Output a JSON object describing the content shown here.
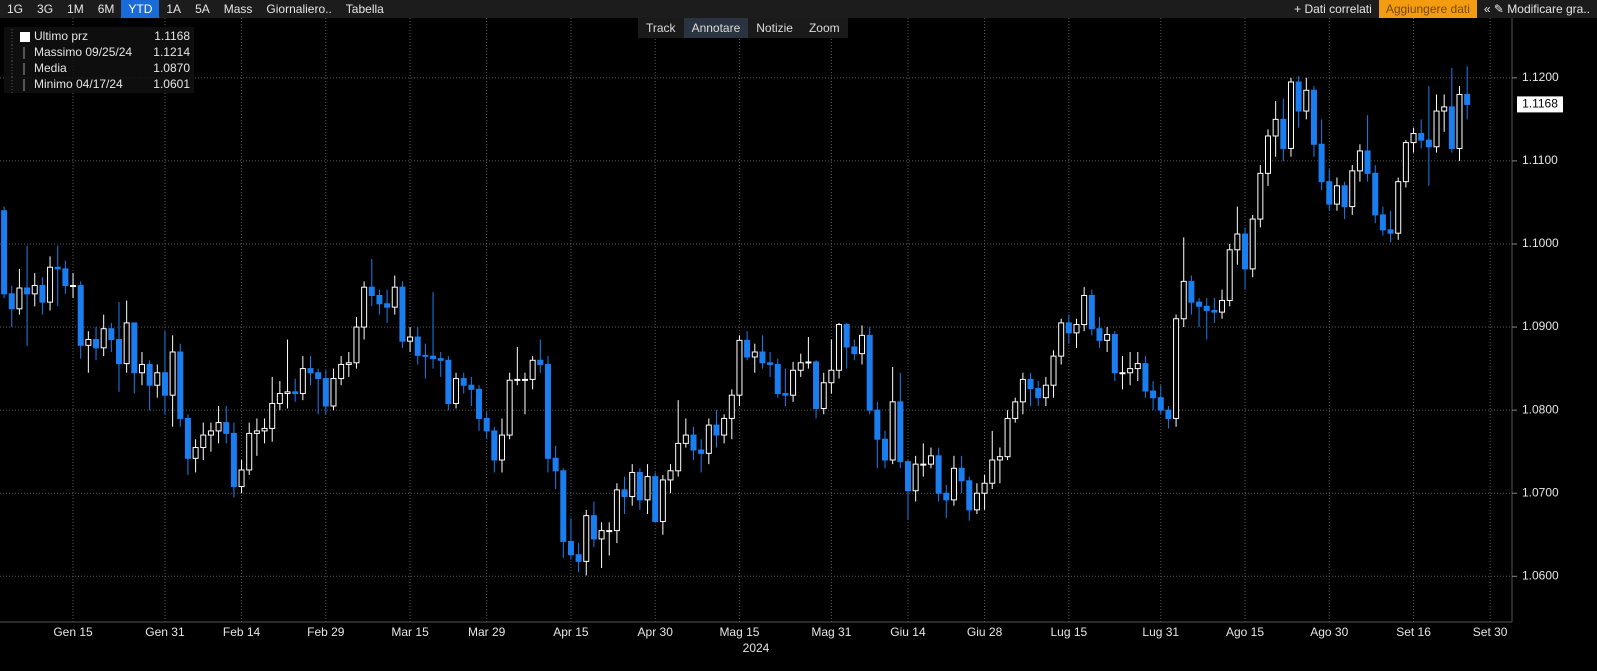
{
  "toolbar": {
    "left": [
      "1G",
      "3G",
      "1M",
      "6M",
      "YTD",
      "1A",
      "5A",
      "Mass",
      "Giornaliero..",
      "Tabella"
    ],
    "active": "YTD",
    "right": [
      "+ Dati correlati",
      "Aggiungere dati",
      "« ✎ Modificare gra.."
    ],
    "highlight": "Aggiungere dati",
    "tools": [
      "Track",
      "Annotare",
      "Notizie",
      "Zoom"
    ]
  },
  "legend": [
    {
      "label": "Ultimo prz",
      "value": "1.1168"
    },
    {
      "label": "Massimo 09/25/24",
      "value": "1.1214"
    },
    {
      "label": "Media",
      "value": "1.0870"
    },
    {
      "label": "Minimo 04/17/24",
      "value": "1.0601"
    }
  ],
  "chart_data": {
    "type": "candlestick",
    "x_title": "2024",
    "up_color": "#ffffff",
    "down_color": "#1a7ef0",
    "grid": true,
    "last_price": 1.1168,
    "ylim": [
      1.0545,
      1.1272
    ],
    "yticks": [
      {
        "value": 1.06,
        "label": "1.0600"
      },
      {
        "value": 1.07,
        "label": "1.0700"
      },
      {
        "value": 1.08,
        "label": "1.0800"
      },
      {
        "value": 1.09,
        "label": "1.0900"
      },
      {
        "value": 1.1,
        "label": "1.1000"
      },
      {
        "value": 1.11,
        "label": "1.1100"
      },
      {
        "value": 1.12,
        "label": "1.1200"
      }
    ],
    "categories": [
      null,
      null,
      null,
      null,
      null,
      null,
      null,
      null,
      null,
      "Gen 15",
      null,
      null,
      null,
      null,
      null,
      null,
      null,
      null,
      null,
      null,
      null,
      "Gen 31",
      null,
      null,
      null,
      null,
      null,
      null,
      null,
      null,
      null,
      "Feb 14",
      null,
      null,
      null,
      null,
      null,
      null,
      null,
      null,
      null,
      null,
      "Feb 29",
      null,
      null,
      null,
      null,
      null,
      null,
      null,
      null,
      null,
      null,
      "Mar 15",
      null,
      null,
      null,
      null,
      null,
      null,
      null,
      null,
      null,
      "Mar 29",
      null,
      null,
      null,
      null,
      null,
      null,
      null,
      null,
      null,
      null,
      "Apr 15",
      null,
      null,
      null,
      null,
      null,
      null,
      null,
      null,
      null,
      null,
      "Apr 30",
      null,
      null,
      null,
      null,
      null,
      null,
      null,
      null,
      null,
      null,
      "Mag 15",
      null,
      null,
      null,
      null,
      null,
      null,
      null,
      null,
      null,
      null,
      null,
      "Mag 31",
      null,
      null,
      null,
      null,
      null,
      null,
      null,
      null,
      null,
      "Giu 14",
      null,
      null,
      null,
      null,
      null,
      null,
      null,
      null,
      null,
      "Giu 28",
      null,
      null,
      null,
      null,
      null,
      null,
      null,
      null,
      null,
      null,
      "Lug 15",
      null,
      null,
      null,
      null,
      null,
      null,
      null,
      null,
      null,
      null,
      null,
      "Lug 31",
      null,
      null,
      null,
      null,
      null,
      null,
      null,
      null,
      null,
      null,
      "Ago 15",
      null,
      null,
      null,
      null,
      null,
      null,
      null,
      null,
      null,
      null,
      "Ago 30",
      null,
      null,
      null,
      null,
      null,
      null,
      null,
      null,
      null,
      null,
      "Set 16",
      null,
      null,
      null,
      null,
      null,
      null,
      null,
      null,
      null,
      "Set 30"
    ],
    "ohlc": [
      [
        1.104,
        1.1045,
        1.0935,
        1.094
      ],
      [
        1.094,
        1.095,
        1.09,
        1.0922
      ],
      [
        1.0922,
        1.097,
        1.0915,
        1.0947
      ],
      [
        1.0947,
        1.0998,
        1.0877,
        1.094
      ],
      [
        1.094,
        1.0965,
        1.0925,
        1.095
      ],
      [
        1.095,
        1.096,
        1.0915,
        1.093
      ],
      [
        1.093,
        1.0985,
        1.092,
        1.0972
      ],
      [
        1.0972,
        1.0998,
        1.0925,
        1.097
      ],
      [
        1.097,
        1.098,
        1.094,
        1.095
      ],
      [
        1.095,
        1.0965,
        1.0935,
        1.095
      ],
      [
        1.095,
        1.0955,
        1.0862,
        1.0878
      ],
      [
        1.0878,
        1.0895,
        1.0845,
        1.0885
      ],
      [
        1.0885,
        1.09,
        1.086,
        1.0875
      ],
      [
        1.0875,
        1.0915,
        1.0865,
        1.0898
      ],
      [
        1.0898,
        1.0905,
        1.087,
        1.0885
      ],
      [
        1.0885,
        1.093,
        1.0822,
        1.0856
      ],
      [
        1.0856,
        1.0932,
        1.0845,
        1.0905
      ],
      [
        1.0905,
        1.0905,
        1.082,
        1.0845
      ],
      [
        1.0845,
        1.087,
        1.083,
        1.0855
      ],
      [
        1.0855,
        1.086,
        1.08,
        1.083
      ],
      [
        1.083,
        1.0855,
        1.0815,
        1.0845
      ],
      [
        1.0845,
        1.0895,
        1.0795,
        1.0818
      ],
      [
        1.0818,
        1.089,
        1.078,
        1.087
      ],
      [
        1.087,
        1.088,
        1.078,
        1.079
      ],
      [
        1.079,
        1.0795,
        1.0722,
        1.0742
      ],
      [
        1.0742,
        1.0765,
        1.0725,
        1.0755
      ],
      [
        1.0755,
        1.0785,
        1.074,
        1.077
      ],
      [
        1.077,
        1.0785,
        1.075,
        1.0775
      ],
      [
        1.0775,
        1.0805,
        1.076,
        1.0785
      ],
      [
        1.0785,
        1.0805,
        1.076,
        1.0772
      ],
      [
        1.0772,
        1.0785,
        1.0695,
        1.0708
      ],
      [
        1.0708,
        1.074,
        1.07,
        1.0728
      ],
      [
        1.0728,
        1.0785,
        1.0722,
        1.0772
      ],
      [
        1.0772,
        1.079,
        1.0745,
        1.0775
      ],
      [
        1.0775,
        1.079,
        1.076,
        1.0778
      ],
      [
        1.0778,
        1.084,
        1.0762,
        1.0808
      ],
      [
        1.0808,
        1.0835,
        1.08,
        1.082
      ],
      [
        1.082,
        1.0885,
        1.0802,
        1.0822
      ],
      [
        1.0822,
        1.0838,
        1.081,
        1.082
      ],
      [
        1.082,
        1.0865,
        1.0812,
        1.085
      ],
      [
        1.085,
        1.0865,
        1.083,
        1.0845
      ],
      [
        1.0845,
        1.085,
        1.0795,
        1.0838
      ],
      [
        1.0838,
        1.0848,
        1.0795,
        1.0805
      ],
      [
        1.0805,
        1.085,
        1.08,
        1.0838
      ],
      [
        1.0838,
        1.0865,
        1.083,
        1.0855
      ],
      [
        1.0855,
        1.087,
        1.084,
        1.0857
      ],
      [
        1.0857,
        1.0912,
        1.085,
        1.09
      ],
      [
        1.09,
        1.0955,
        1.0885,
        1.0948
      ],
      [
        1.0948,
        1.0982,
        1.0925,
        1.0938
      ],
      [
        1.0938,
        1.0945,
        1.0915,
        1.0928
      ],
      [
        1.0928,
        1.0945,
        1.0905,
        1.0924
      ],
      [
        1.0924,
        1.0962,
        1.0915,
        1.0948
      ],
      [
        1.0948,
        1.0955,
        1.0875,
        1.0883
      ],
      [
        1.0883,
        1.09,
        1.087,
        1.0888
      ],
      [
        1.0888,
        1.09,
        1.0855,
        1.0866
      ],
      [
        1.0866,
        1.088,
        1.0838,
        1.0865
      ],
      [
        1.0865,
        1.0942,
        1.085,
        1.0862
      ],
      [
        1.0862,
        1.087,
        1.084,
        1.086
      ],
      [
        1.086,
        1.0865,
        1.08,
        1.0808
      ],
      [
        1.0808,
        1.0845,
        1.0802,
        1.0838
      ],
      [
        1.0838,
        1.0845,
        1.082,
        1.083
      ],
      [
        1.083,
        1.084,
        1.0805,
        1.0825
      ],
      [
        1.0825,
        1.083,
        1.0775,
        1.079
      ],
      [
        1.079,
        1.0798,
        1.0765,
        1.0775
      ],
      [
        1.0775,
        1.078,
        1.0725,
        1.074
      ],
      [
        1.074,
        1.079,
        1.0725,
        1.077
      ],
      [
        1.077,
        1.0845,
        1.0765,
        1.0836
      ],
      [
        1.0836,
        1.0876,
        1.083,
        1.0837
      ],
      [
        1.0837,
        1.0845,
        1.0795,
        1.0837
      ],
      [
        1.0837,
        1.0865,
        1.0825,
        1.086
      ],
      [
        1.086,
        1.0885,
        1.0845,
        1.0855
      ],
      [
        1.0855,
        1.0865,
        1.0725,
        1.0742
      ],
      [
        1.0742,
        1.0757,
        1.0705,
        1.0727
      ],
      [
        1.0727,
        1.073,
        1.0622,
        1.0642
      ],
      [
        1.0642,
        1.067,
        1.062,
        1.0626
      ],
      [
        1.0626,
        1.064,
        1.0605,
        1.0618
      ],
      [
        1.0618,
        1.068,
        1.0601,
        1.0673
      ],
      [
        1.0673,
        1.069,
        1.0635,
        1.0645
      ],
      [
        1.0645,
        1.0665,
        1.061,
        1.0655
      ],
      [
        1.0655,
        1.0665,
        1.0625,
        1.0655
      ],
      [
        1.0655,
        1.0712,
        1.064,
        1.0704
      ],
      [
        1.0704,
        1.072,
        1.0675,
        1.0696
      ],
      [
        1.0696,
        1.0735,
        1.0685,
        1.0725
      ],
      [
        1.0725,
        1.073,
        1.068,
        1.0692
      ],
      [
        1.0692,
        1.0735,
        1.0675,
        1.072
      ],
      [
        1.072,
        1.0725,
        1.0665,
        1.0666
      ],
      [
        1.0666,
        1.0722,
        1.065,
        1.0716
      ],
      [
        1.0716,
        1.0735,
        1.07,
        1.0727
      ],
      [
        1.0727,
        1.0812,
        1.072,
        1.076
      ],
      [
        1.076,
        1.079,
        1.0755,
        1.077
      ],
      [
        1.077,
        1.078,
        1.074,
        1.0752
      ],
      [
        1.0752,
        1.0765,
        1.0725,
        1.0748
      ],
      [
        1.0748,
        1.079,
        1.0735,
        1.0782
      ],
      [
        1.0782,
        1.08,
        1.0755,
        1.077
      ],
      [
        1.077,
        1.0795,
        1.076,
        1.079
      ],
      [
        1.079,
        1.0825,
        1.0765,
        1.0818
      ],
      [
        1.0818,
        1.089,
        1.0805,
        1.0884
      ],
      [
        1.0884,
        1.0895,
        1.086,
        1.0864
      ],
      [
        1.0864,
        1.088,
        1.0845,
        1.087
      ],
      [
        1.087,
        1.089,
        1.085,
        1.0857
      ],
      [
        1.0857,
        1.087,
        1.084,
        1.0855
      ],
      [
        1.0855,
        1.0862,
        1.0815,
        1.082
      ],
      [
        1.082,
        1.085,
        1.0805,
        1.0818
      ],
      [
        1.0818,
        1.0858,
        1.081,
        1.0848
      ],
      [
        1.0848,
        1.0868,
        1.084,
        1.0857
      ],
      [
        1.0857,
        1.0888,
        1.085,
        1.0858
      ],
      [
        1.0858,
        1.086,
        1.079,
        1.0802
      ],
      [
        1.0802,
        1.0845,
        1.0795,
        1.0833
      ],
      [
        1.0833,
        1.0885,
        1.082,
        1.0848
      ],
      [
        1.0848,
        1.0905,
        1.0838,
        1.0903
      ],
      [
        1.0903,
        1.0905,
        1.085,
        1.0876
      ],
      [
        1.0876,
        1.0885,
        1.086,
        1.0868
      ],
      [
        1.0868,
        1.0902,
        1.0855,
        1.089
      ],
      [
        1.089,
        1.09,
        1.0795,
        1.08
      ],
      [
        1.08,
        1.081,
        1.073,
        1.0765
      ],
      [
        1.0765,
        1.0775,
        1.073,
        1.074
      ],
      [
        1.074,
        1.0852,
        1.0735,
        1.081
      ],
      [
        1.081,
        1.0845,
        1.073,
        1.0738
      ],
      [
        1.0738,
        1.074,
        1.0668,
        1.0703
      ],
      [
        1.0703,
        1.0745,
        1.069,
        1.0735
      ],
      [
        1.0735,
        1.076,
        1.072,
        1.0735
      ],
      [
        1.0735,
        1.0755,
        1.073,
        1.0745
      ],
      [
        1.0745,
        1.0755,
        1.069,
        1.07
      ],
      [
        1.07,
        1.071,
        1.067,
        1.0692
      ],
      [
        1.0692,
        1.0745,
        1.0685,
        1.073
      ],
      [
        1.073,
        1.0745,
        1.07,
        1.0715
      ],
      [
        1.0715,
        1.072,
        1.0667,
        1.068
      ],
      [
        1.068,
        1.0712,
        1.0675,
        1.07
      ],
      [
        1.07,
        1.0722,
        1.068,
        1.0712
      ],
      [
        1.0712,
        1.0775,
        1.0705,
        1.074
      ],
      [
        1.074,
        1.0755,
        1.0712,
        1.0744
      ],
      [
        1.0744,
        1.08,
        1.074,
        1.079
      ],
      [
        1.079,
        1.0815,
        1.0785,
        1.081
      ],
      [
        1.081,
        1.0845,
        1.0795,
        1.0837
      ],
      [
        1.0837,
        1.0845,
        1.0805,
        1.0826
      ],
      [
        1.0826,
        1.0835,
        1.0805,
        1.0815
      ],
      [
        1.0815,
        1.084,
        1.0805,
        1.083
      ],
      [
        1.083,
        1.0872,
        1.0815,
        1.0865
      ],
      [
        1.0865,
        1.091,
        1.0855,
        1.0905
      ],
      [
        1.0905,
        1.0915,
        1.088,
        1.0893
      ],
      [
        1.0893,
        1.091,
        1.0875,
        1.0903
      ],
      [
        1.0903,
        1.0948,
        1.0895,
        1.0938
      ],
      [
        1.0938,
        1.0945,
        1.089,
        1.0898
      ],
      [
        1.0898,
        1.0912,
        1.0875,
        1.0884
      ],
      [
        1.0884,
        1.09,
        1.087,
        1.0891
      ],
      [
        1.0891,
        1.0895,
        1.0835,
        1.0845
      ],
      [
        1.0845,
        1.0865,
        1.0825,
        1.0845
      ],
      [
        1.0845,
        1.087,
        1.083,
        1.085
      ],
      [
        1.085,
        1.087,
        1.0835,
        1.0856
      ],
      [
        1.0856,
        1.0865,
        1.0815,
        1.0823
      ],
      [
        1.0823,
        1.0835,
        1.08,
        1.0815
      ],
      [
        1.0815,
        1.083,
        1.0795,
        1.08
      ],
      [
        1.08,
        1.0805,
        1.0778,
        1.079
      ],
      [
        1.079,
        1.0915,
        1.078,
        1.091
      ],
      [
        1.091,
        1.1008,
        1.09,
        1.0955
      ],
      [
        1.0955,
        1.0962,
        1.0915,
        1.093
      ],
      [
        1.093,
        1.0935,
        1.09,
        1.0925
      ],
      [
        1.0925,
        1.0935,
        1.0885,
        1.092
      ],
      [
        1.092,
        1.0935,
        1.0905,
        1.0918
      ],
      [
        1.0918,
        1.0945,
        1.091,
        1.0932
      ],
      [
        1.0932,
        1.1,
        1.0925,
        1.0993
      ],
      [
        1.0993,
        1.1045,
        1.0975,
        1.1012
      ],
      [
        1.1012,
        1.102,
        1.0945,
        1.097
      ],
      [
        1.097,
        1.1035,
        1.096,
        1.103
      ],
      [
        1.103,
        1.1095,
        1.102,
        1.1085
      ],
      [
        1.1085,
        1.1138,
        1.107,
        1.113
      ],
      [
        1.113,
        1.1172,
        1.1105,
        1.115
      ],
      [
        1.115,
        1.1175,
        1.11,
        1.1115
      ],
      [
        1.1115,
        1.12,
        1.1105,
        1.1195
      ],
      [
        1.1195,
        1.1202,
        1.114,
        1.116
      ],
      [
        1.116,
        1.12,
        1.115,
        1.1185
      ],
      [
        1.1185,
        1.119,
        1.1105,
        1.112
      ],
      [
        1.112,
        1.115,
        1.1065,
        1.1075
      ],
      [
        1.1075,
        1.109,
        1.104,
        1.1048
      ],
      [
        1.1048,
        1.108,
        1.104,
        1.107
      ],
      [
        1.107,
        1.1075,
        1.103,
        1.1045
      ],
      [
        1.1045,
        1.1095,
        1.1035,
        1.1088
      ],
      [
        1.1088,
        1.112,
        1.1075,
        1.1112
      ],
      [
        1.1112,
        1.1155,
        1.1075,
        1.1085
      ],
      [
        1.1085,
        1.1095,
        1.1025,
        1.1035
      ],
      [
        1.1035,
        1.1045,
        1.101,
        1.1017
      ],
      [
        1.1017,
        1.104,
        1.1002,
        1.1013
      ],
      [
        1.1013,
        1.108,
        1.1005,
        1.1075
      ],
      [
        1.1075,
        1.1125,
        1.1068,
        1.1122
      ],
      [
        1.1122,
        1.114,
        1.111,
        1.1133
      ],
      [
        1.1133,
        1.115,
        1.1115,
        1.1125
      ],
      [
        1.1125,
        1.119,
        1.107,
        1.1117
      ],
      [
        1.1117,
        1.118,
        1.111,
        1.116
      ],
      [
        1.116,
        1.118,
        1.1135,
        1.1165
      ],
      [
        1.1165,
        1.1212,
        1.111,
        1.1115
      ],
      [
        1.1115,
        1.119,
        1.11,
        1.118
      ],
      [
        1.118,
        1.1214,
        1.115,
        1.1168
      ],
      null,
      null,
      null
    ]
  }
}
